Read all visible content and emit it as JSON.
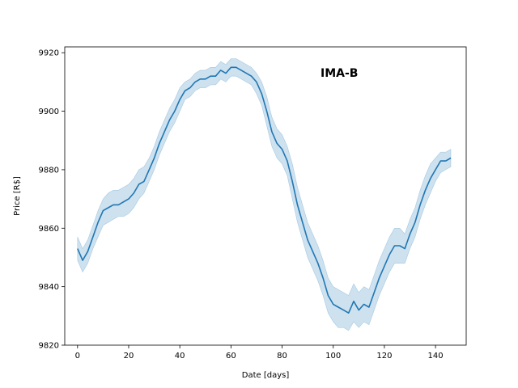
{
  "chart_data": {
    "type": "line",
    "title": "",
    "annotation": "IMA-B",
    "xlabel": "Date [days]",
    "ylabel": "Price [R$]",
    "xlim": [
      -5,
      152
    ],
    "ylim": [
      9820,
      9922
    ],
    "xticks": [
      0,
      20,
      40,
      60,
      80,
      100,
      120,
      140
    ],
    "yticks": [
      9820,
      9840,
      9860,
      9880,
      9900,
      9920
    ],
    "grid": false,
    "legend": "none",
    "series": [
      {
        "color": "#1f77b4",
        "band_color": "#1f77b4",
        "band_opacity": 0.22,
        "x": [
          0,
          2,
          4,
          6,
          8,
          10,
          12,
          14,
          16,
          18,
          20,
          22,
          24,
          26,
          28,
          30,
          32,
          34,
          36,
          38,
          40,
          42,
          44,
          46,
          48,
          50,
          52,
          54,
          56,
          58,
          60,
          62,
          64,
          66,
          68,
          70,
          72,
          74,
          76,
          78,
          80,
          82,
          84,
          86,
          88,
          90,
          92,
          94,
          96,
          98,
          100,
          102,
          104,
          106,
          108,
          110,
          112,
          114,
          116,
          118,
          120,
          122,
          124,
          126,
          128,
          130,
          132,
          134,
          136,
          138,
          140,
          142,
          144,
          146
        ],
        "y": [
          9853,
          9849,
          9852,
          9857,
          9862,
          9866,
          9867,
          9868,
          9868,
          9869,
          9870,
          9872,
          9875,
          9876,
          9880,
          9884,
          9889,
          9893,
          9897,
          9900,
          9904,
          9907,
          9908,
          9910,
          9911,
          9911,
          9912,
          9912,
          9914,
          9913,
          9915,
          9915,
          9914,
          9913,
          9912,
          9910,
          9906,
          9900,
          9893,
          9889,
          9887,
          9883,
          9876,
          9868,
          9862,
          9856,
          9852,
          9848,
          9843,
          9837,
          9834,
          9833,
          9832,
          9831,
          9835,
          9832,
          9834,
          9833,
          9838,
          9843,
          9847,
          9851,
          9854,
          9854,
          9853,
          9858,
          9862,
          9868,
          9873,
          9877,
          9880,
          9883,
          9883,
          9884
        ],
        "lower": [
          9849,
          9845,
          9848,
          9853,
          9857,
          9861,
          9862,
          9863,
          9864,
          9864,
          9865,
          9867,
          9870,
          9872,
          9876,
          9880,
          9885,
          9889,
          9893,
          9896,
          9900,
          9904,
          9905,
          9907,
          9908,
          9908,
          9909,
          9909,
          9911,
          9910,
          9912,
          9912,
          9911,
          9910,
          9909,
          9906,
          9902,
          9895,
          9888,
          9884,
          9882,
          9878,
          9870,
          9862,
          9856,
          9850,
          9846,
          9842,
          9837,
          9831,
          9828,
          9826,
          9826,
          9825,
          9828,
          9826,
          9828,
          9827,
          9832,
          9837,
          9841,
          9845,
          9848,
          9848,
          9848,
          9853,
          9857,
          9863,
          9868,
          9872,
          9876,
          9879,
          9880,
          9881
        ],
        "upper": [
          9857,
          9853,
          9856,
          9861,
          9866,
          9870,
          9872,
          9873,
          9873,
          9874,
          9875,
          9877,
          9880,
          9881,
          9884,
          9888,
          9893,
          9897,
          9901,
          9904,
          9908,
          9910,
          9911,
          9913,
          9914,
          9914,
          9915,
          9915,
          9917,
          9916,
          9918,
          9918,
          9917,
          9916,
          9915,
          9913,
          9910,
          9905,
          9898,
          9894,
          9892,
          9888,
          9882,
          9874,
          9868,
          9862,
          9858,
          9854,
          9849,
          9843,
          9840,
          9839,
          9838,
          9837,
          9841,
          9838,
          9840,
          9839,
          9844,
          9849,
          9853,
          9857,
          9860,
          9860,
          9858,
          9863,
          9867,
          9873,
          9878,
          9882,
          9884,
          9886,
          9886,
          9887
        ]
      }
    ]
  }
}
